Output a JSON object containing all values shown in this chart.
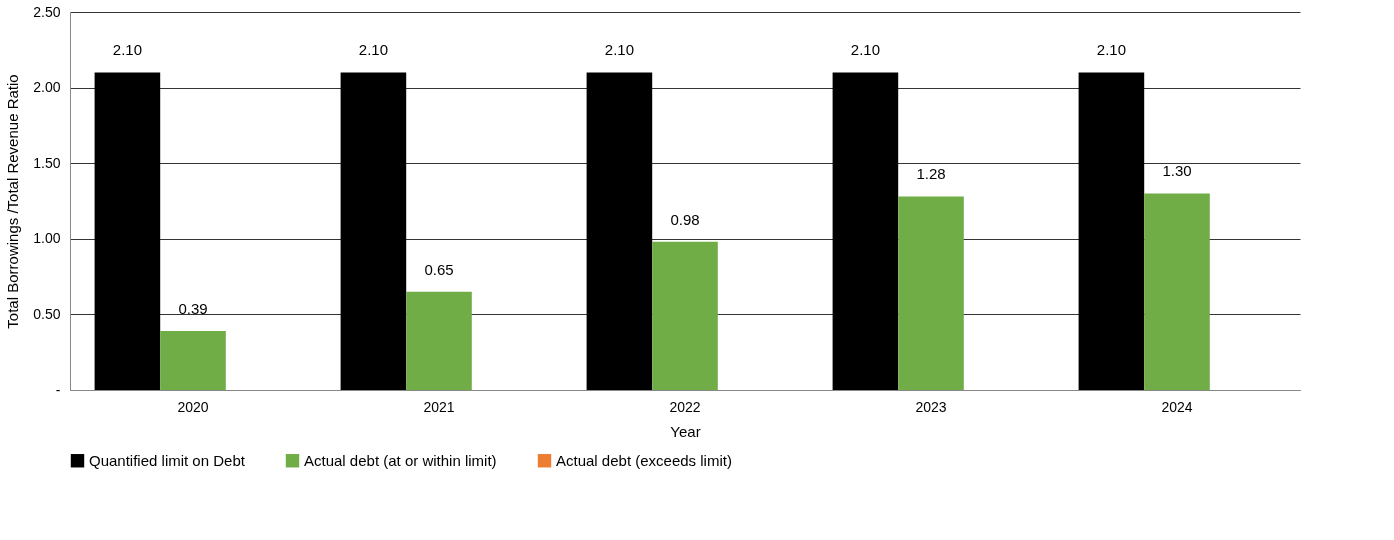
{
  "chart_data": {
    "type": "bar",
    "xlabel": "Year",
    "ylabel": "Total Borrowings /Total Revenue Ratio",
    "categories": [
      "2020",
      "2021",
      "2022",
      "2023",
      "2024"
    ],
    "series": [
      {
        "name": "Quantified limit on Debt",
        "color": "#000000",
        "values": [
          2.1,
          2.1,
          2.1,
          2.1,
          2.1
        ],
        "value_labels": [
          "2.10",
          "2.10",
          "2.10",
          "2.10",
          "2.10"
        ]
      },
      {
        "name": "Actual debt (at or within limit)",
        "color": "#70ad47",
        "values": [
          0.39,
          0.65,
          0.98,
          1.28,
          1.3
        ],
        "value_labels": [
          "0.39",
          "0.65",
          "0.98",
          "1.28",
          "1.30"
        ]
      },
      {
        "name": "Actual debt (exceeds limit)",
        "color": "#ed7d31",
        "values": [
          null,
          null,
          null,
          null,
          null
        ]
      }
    ],
    "ylim": [
      0,
      2.5
    ],
    "yticks": [
      {
        "value": 0,
        "label": "-"
      },
      {
        "value": 0.5,
        "label": "0.50"
      },
      {
        "value": 1,
        "label": "1.00"
      },
      {
        "value": 1.5,
        "label": "1.50"
      },
      {
        "value": 2,
        "label": "2.00"
      },
      {
        "value": 2.5,
        "label": "2.50"
      }
    ],
    "grid": "y",
    "legend": "bottom"
  }
}
